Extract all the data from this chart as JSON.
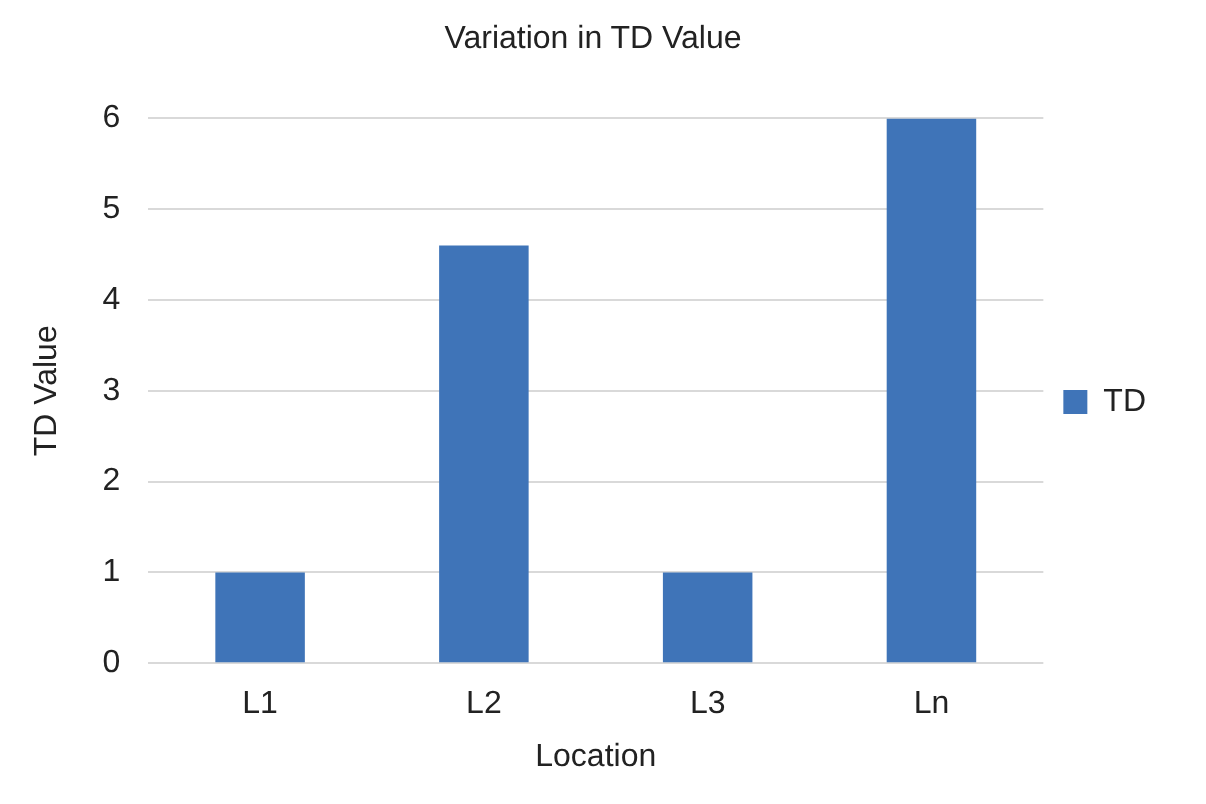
{
  "chart_data": {
    "type": "bar",
    "title": "Variation in TD Value",
    "xlabel": "Location",
    "ylabel": "TD Value",
    "categories": [
      "L1",
      "L2",
      "L3",
      "Ln"
    ],
    "series": [
      {
        "name": "TD",
        "color": "#3f74b8",
        "values": [
          1,
          4.6,
          1,
          6
        ]
      }
    ],
    "ylim": [
      0,
      6
    ],
    "yticks": [
      0,
      1,
      2,
      3,
      4,
      5,
      6
    ],
    "grid": "y",
    "legend": "right"
  }
}
